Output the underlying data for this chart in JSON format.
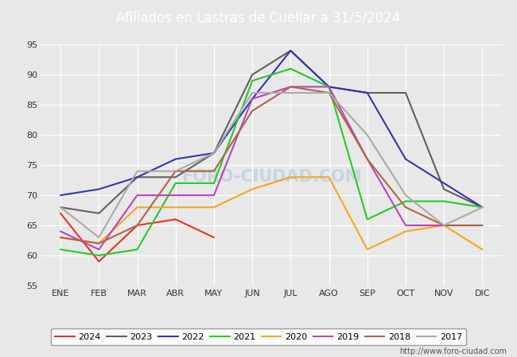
{
  "title": "Afiliados en Lastras de Cuéllar a 31/5/2024",
  "title_color": "#ffffff",
  "title_bg_color": "#5b9bd5",
  "months": [
    "ENE",
    "FEB",
    "MAR",
    "ABR",
    "MAY",
    "JUN",
    "JUL",
    "AGO",
    "SEP",
    "OCT",
    "NOV",
    "DIC"
  ],
  "ylim": [
    55,
    95
  ],
  "yticks": [
    55,
    60,
    65,
    70,
    75,
    80,
    85,
    90,
    95
  ],
  "series": {
    "2024": {
      "color": "#e8312a",
      "data": [
        67,
        59,
        65,
        66,
        63,
        null,
        null,
        null,
        null,
        null,
        null,
        null
      ]
    },
    "2023": {
      "color": "#606060",
      "data": [
        68,
        67,
        73,
        73,
        77,
        90,
        94,
        88,
        87,
        87,
        71,
        68
      ]
    },
    "2022": {
      "color": "#3333bb",
      "data": [
        70,
        71,
        73,
        76,
        77,
        86,
        94,
        88,
        87,
        76,
        72,
        68
      ]
    },
    "2021": {
      "color": "#22cc22",
      "data": [
        61,
        60,
        61,
        72,
        72,
        89,
        91,
        88,
        66,
        69,
        69,
        68
      ]
    },
    "2020": {
      "color": "#f5a623",
      "data": [
        63,
        62,
        68,
        68,
        68,
        71,
        73,
        73,
        61,
        64,
        65,
        61
      ]
    },
    "2019": {
      "color": "#bb44bb",
      "data": [
        64,
        61,
        70,
        70,
        70,
        86,
        88,
        88,
        76,
        65,
        65,
        65
      ]
    },
    "2018": {
      "color": "#aa6644",
      "data": [
        63,
        62,
        65,
        74,
        74,
        84,
        88,
        87,
        76,
        68,
        65,
        65
      ]
    },
    "2017": {
      "color": "#aaaaaa",
      "data": [
        68,
        63,
        74,
        74,
        77,
        87,
        87,
        87,
        80,
        70,
        65,
        68
      ]
    }
  },
  "legend_order": [
    "2024",
    "2023",
    "2022",
    "2021",
    "2020",
    "2019",
    "2018",
    "2017"
  ],
  "watermark": "http://www.foro-ciudad.com",
  "bg_plot": "#e8e8e8",
  "bg_fig": "#e8e8e8",
  "grid_color": "#ffffff",
  "font_color": "#333333"
}
